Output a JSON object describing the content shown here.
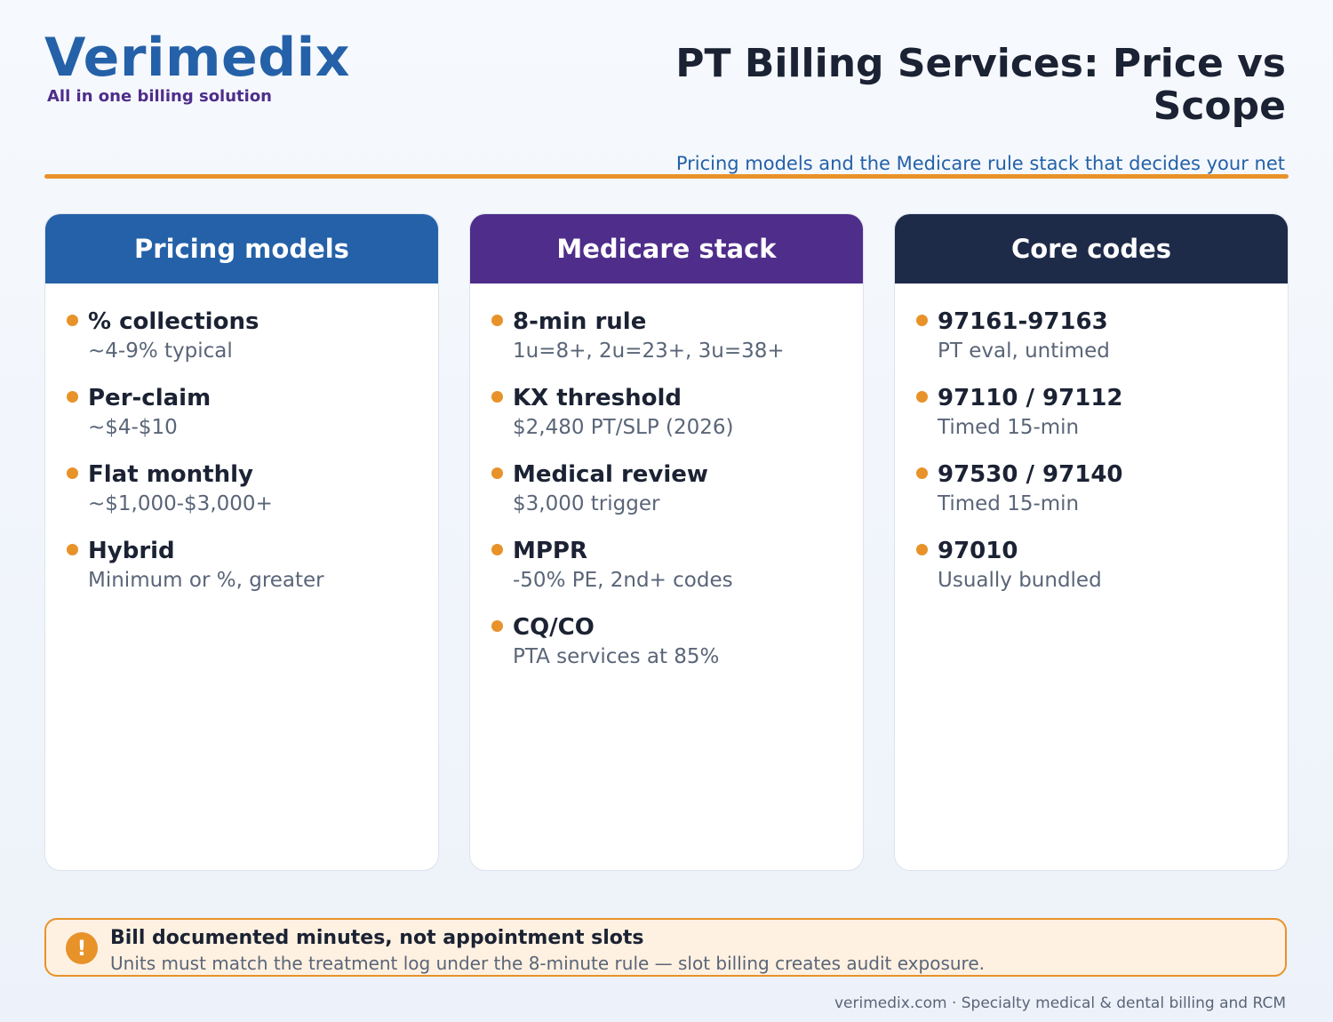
{
  "brand": {
    "name": "Verimedix",
    "tagline": "All in one billing solution"
  },
  "header": {
    "title": "PT Billing Services: Price vs Scope",
    "subtitle": "Pricing models and the Medicare rule stack that decides your net"
  },
  "colors": {
    "brand_blue": "#2461a8",
    "brand_purple": "#4f2d8a",
    "navy": "#1d2a48",
    "accent_orange": "#e8922a",
    "callout_bg": "#fff1e1"
  },
  "cards": [
    {
      "title": "Pricing models",
      "items": [
        {
          "title": "% collections",
          "desc": "~4-9% typical"
        },
        {
          "title": "Per-claim",
          "desc": "~$4-$10"
        },
        {
          "title": "Flat monthly",
          "desc": "~$1,000-$3,000+"
        },
        {
          "title": "Hybrid",
          "desc": "Minimum or %, greater"
        }
      ]
    },
    {
      "title": "Medicare stack",
      "items": [
        {
          "title": "8-min rule",
          "desc": "1u=8+, 2u=23+, 3u=38+"
        },
        {
          "title": "KX threshold",
          "desc": "$2,480 PT/SLP (2026)"
        },
        {
          "title": "Medical review",
          "desc": "$3,000 trigger"
        },
        {
          "title": "MPPR",
          "desc": "-50% PE, 2nd+ codes"
        },
        {
          "title": "CQ/CO",
          "desc": "PTA services at 85%"
        }
      ]
    },
    {
      "title": "Core codes",
      "items": [
        {
          "title": "97161-97163",
          "desc": "PT eval, untimed"
        },
        {
          "title": "97110 / 97112",
          "desc": "Timed 15-min"
        },
        {
          "title": "97530 / 97140",
          "desc": "Timed 15-min"
        },
        {
          "title": "97010",
          "desc": "Usually bundled"
        }
      ]
    }
  ],
  "callout": {
    "icon": "!",
    "title": "Bill documented minutes, not appointment slots",
    "text": "Units must match the treatment log under the 8-minute rule — slot billing creates audit exposure."
  },
  "footer": {
    "text": "verimedix.com · Specialty medical & dental billing and RCM"
  }
}
